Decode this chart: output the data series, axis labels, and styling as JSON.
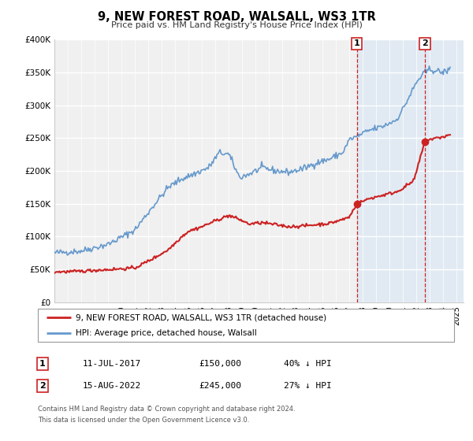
{
  "title": "9, NEW FOREST ROAD, WALSALL, WS3 1TR",
  "subtitle": "Price paid vs. HM Land Registry's House Price Index (HPI)",
  "hpi_color": "#6699cc",
  "price_color": "#cc2222",
  "marker_color": "#cc2222",
  "background_color": "#ffffff",
  "plot_bg_color": "#f0f0f0",
  "grid_color": "#ffffff",
  "ylim": [
    0,
    400000
  ],
  "xlim_start": 1995.0,
  "xlim_end": 2025.5,
  "yticks": [
    0,
    50000,
    100000,
    150000,
    200000,
    250000,
    300000,
    350000,
    400000
  ],
  "ytick_labels": [
    "£0",
    "£50K",
    "£100K",
    "£150K",
    "£200K",
    "£250K",
    "£300K",
    "£350K",
    "£400K"
  ],
  "xticks": [
    1995,
    1996,
    1997,
    1998,
    1999,
    2000,
    2001,
    2002,
    2003,
    2004,
    2005,
    2006,
    2007,
    2008,
    2009,
    2010,
    2011,
    2012,
    2013,
    2014,
    2015,
    2016,
    2017,
    2018,
    2019,
    2020,
    2021,
    2022,
    2023,
    2024,
    2025
  ],
  "sale1_x": 2017.54,
  "sale1_y": 150000,
  "sale1_label": "1",
  "sale1_date": "11-JUL-2017",
  "sale1_price": "£150,000",
  "sale1_hpi": "40% ↓ HPI",
  "sale2_x": 2022.62,
  "sale2_y": 245000,
  "sale2_label": "2",
  "sale2_date": "15-AUG-2022",
  "sale2_price": "£245,000",
  "sale2_hpi": "27% ↓ HPI",
  "legend_line1": "9, NEW FOREST ROAD, WALSALL, WS3 1TR (detached house)",
  "legend_line2": "HPI: Average price, detached house, Walsall",
  "footnote1": "Contains HM Land Registry data © Crown copyright and database right 2024.",
  "footnote2": "This data is licensed under the Open Government Licence v3.0.",
  "hpi_lw": 1.2,
  "price_lw": 1.5,
  "shaded_start": 2017.54,
  "shaded_end": 2025.5
}
